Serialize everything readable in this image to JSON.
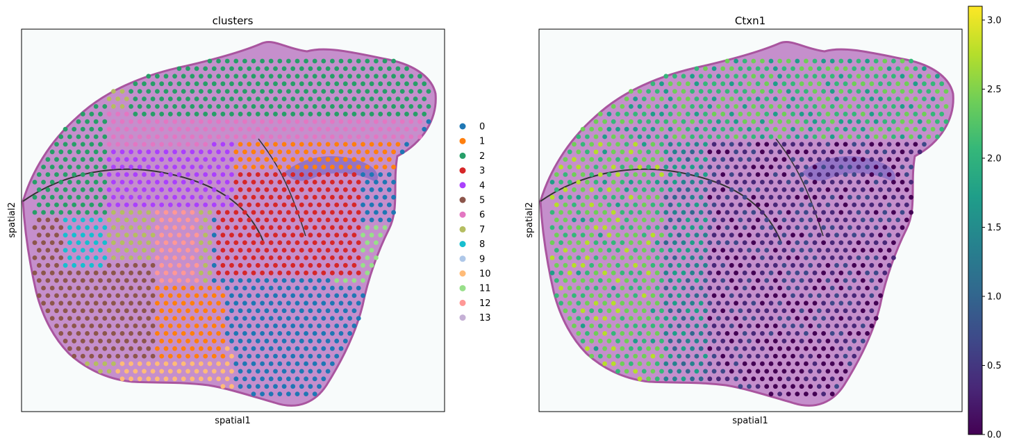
{
  "chart_data": [
    {
      "type": "scatter",
      "title": "clusters",
      "xlabel": "spatial1",
      "ylabel": "spatial2",
      "grid": false,
      "background": "H&E tissue image (mouse brain section)",
      "legend": {
        "placement": "right",
        "entries": [
          {
            "label": "0",
            "color": "#1f77b4"
          },
          {
            "label": "1",
            "color": "#ff7f0e"
          },
          {
            "label": "2",
            "color": "#279e68"
          },
          {
            "label": "3",
            "color": "#d62728"
          },
          {
            "label": "4",
            "color": "#aa40fc"
          },
          {
            "label": "5",
            "color": "#8c564b"
          },
          {
            "label": "6",
            "color": "#e377c2"
          },
          {
            "label": "7",
            "color": "#b5bd61"
          },
          {
            "label": "8",
            "color": "#17becf"
          },
          {
            "label": "9",
            "color": "#aec7e8"
          },
          {
            "label": "10",
            "color": "#ffbb78"
          },
          {
            "label": "11",
            "color": "#98df8a"
          },
          {
            "label": "12",
            "color": "#ff9896"
          },
          {
            "label": "13",
            "color": "#c5b0d5"
          }
        ]
      }
    },
    {
      "type": "scatter",
      "title": "Ctxn1",
      "xlabel": "spatial1",
      "ylabel": "spatial2",
      "grid": false,
      "background": "H&E tissue image (mouse brain section)",
      "colorbar": {
        "colormap": "viridis",
        "range": [
          0.0,
          3.1
        ],
        "ticks": [
          "0.0",
          "0.5",
          "1.0",
          "1.5",
          "2.0",
          "2.5",
          "3.0"
        ],
        "tick_values": [
          0.0,
          0.5,
          1.0,
          1.5,
          2.0,
          2.5,
          3.0
        ]
      }
    }
  ],
  "colors": {
    "tissue_fill": "#c58fcc",
    "tissue_edge": "#a9559f",
    "hippocampus": "#8a6ec4",
    "viridis": [
      "#440154",
      "#482878",
      "#3e4989",
      "#31688e",
      "#26828e",
      "#1f9e89",
      "#35b779",
      "#6ece58",
      "#b5de2b",
      "#fde725"
    ]
  }
}
